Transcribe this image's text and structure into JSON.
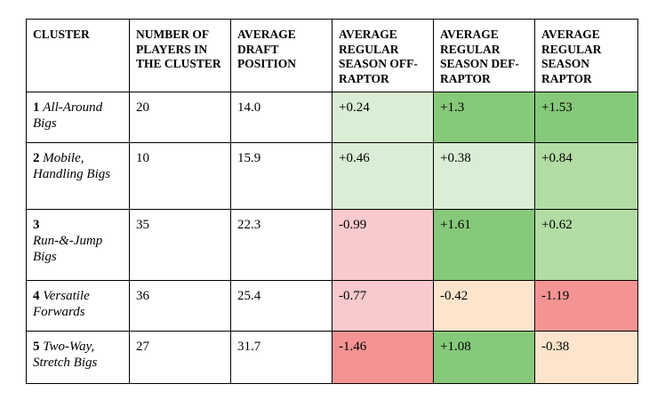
{
  "headers": [
    "CLUSTER",
    "NUMBER OF PLAYERS IN THE CLUSTER",
    "AVERAGE DRAFT POSITION",
    "AVERAGE REGULAR SEASON OFF-RAPTOR",
    "AVERAGE REGULAR SEASON DEF-RAPTOR",
    "AVERAGE REGULAR SEASON RAPTOR"
  ],
  "colors": {
    "light_green": "#d9eed5",
    "mid_green": "#b2dca4",
    "dark_green": "#87c97a",
    "light_red": "#f8c9cd",
    "dark_red": "#f49394",
    "peach": "#fde4cc"
  },
  "rows": [
    {
      "num": "1",
      "name": "All-Around Bigs",
      "players": "20",
      "draft": "14.0",
      "off": "+0.24",
      "off_color": "#d9eed5",
      "def": "+1.3",
      "def_color": "#87c97a",
      "raptor": "+1.53",
      "raptor_color": "#87c97a"
    },
    {
      "num": "2",
      "name": "Mobile, Handling Bigs",
      "players": "10",
      "draft": "15.9",
      "off": "+0.46",
      "off_color": "#d9eed5",
      "def": "+0.38",
      "def_color": "#d9eed5",
      "raptor": "+0.84",
      "raptor_color": "#b2dca4"
    },
    {
      "num": "3",
      "name": "Run-&-Jump Bigs",
      "players": "35",
      "draft": "22.3",
      "off": "-0.99",
      "off_color": "#f8c9cd",
      "def": "+1.61",
      "def_color": "#87c97a",
      "raptor": "+0.62",
      "raptor_color": "#b2dca4"
    },
    {
      "num": "4",
      "name": "Versatile Forwards",
      "players": "36",
      "draft": "25.4",
      "off": "-0.77",
      "off_color": "#f8c9cd",
      "def": "-0.42",
      "def_color": "#fde4cc",
      "raptor": "-1.19",
      "raptor_color": "#f49394"
    },
    {
      "num": "5",
      "name": "Two-Way, Stretch Bigs",
      "players": "27",
      "draft": "31.7",
      "off": "-1.46",
      "off_color": "#f49394",
      "def": "+1.08",
      "def_color": "#87c97a",
      "raptor": "-0.38",
      "raptor_color": "#fde4cc"
    }
  ]
}
